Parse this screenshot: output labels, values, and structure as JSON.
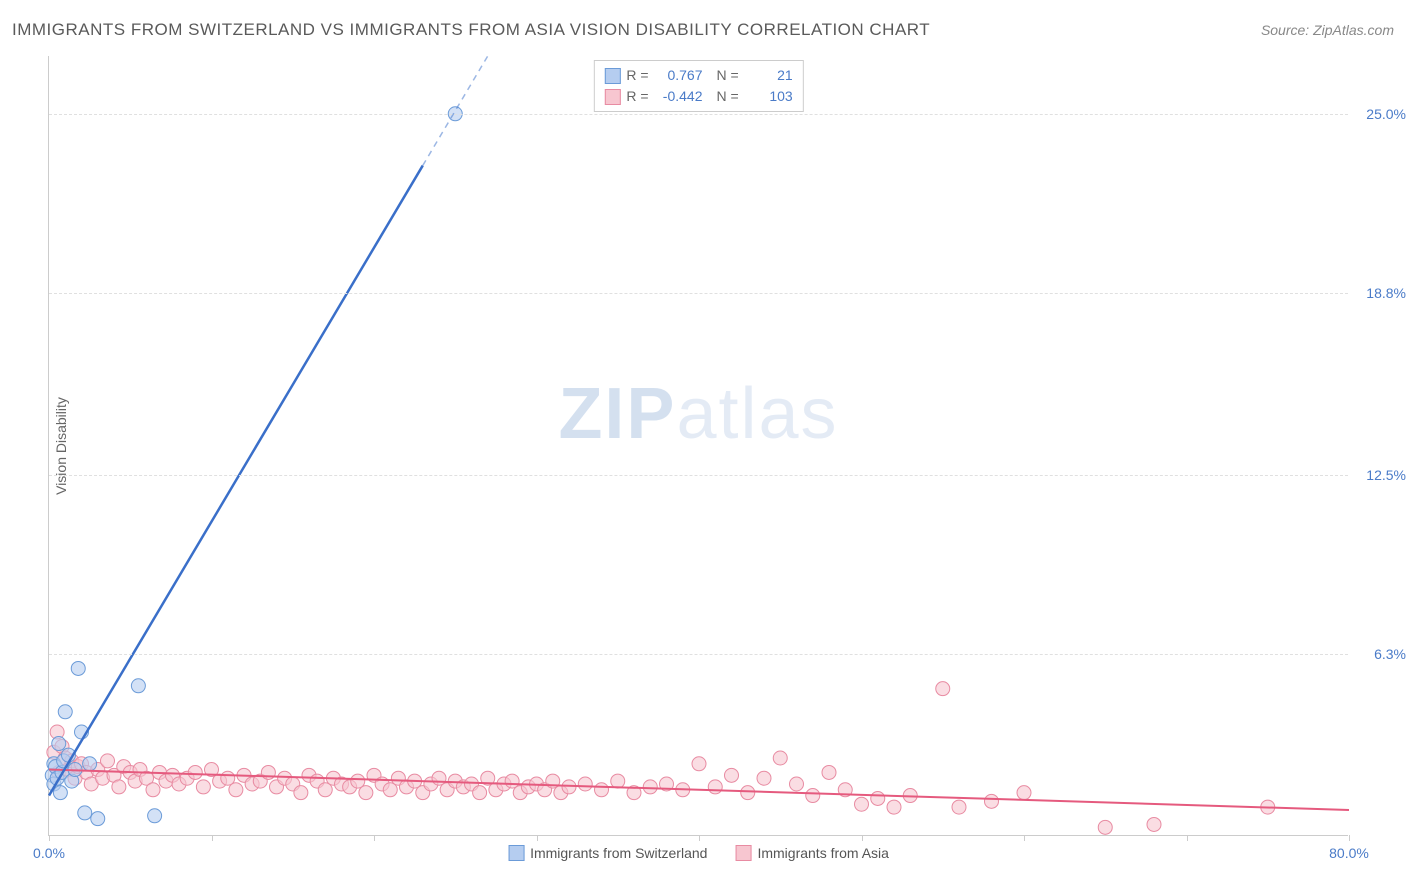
{
  "header": {
    "title": "IMMIGRANTS FROM SWITZERLAND VS IMMIGRANTS FROM ASIA VISION DISABILITY CORRELATION CHART",
    "source": "Source: ZipAtlas.com"
  },
  "axes": {
    "y_label": "Vision Disability",
    "x_min": 0.0,
    "x_max": 80.0,
    "y_min": 0.0,
    "y_max": 27.0,
    "y_ticks": [
      {
        "value": 6.3,
        "label": "6.3%"
      },
      {
        "value": 12.5,
        "label": "12.5%"
      },
      {
        "value": 18.8,
        "label": "18.8%"
      },
      {
        "value": 25.0,
        "label": "25.0%"
      }
    ],
    "x_tick_label_min": "0.0%",
    "x_tick_label_max": "80.0%",
    "x_tick_positions": [
      0,
      10,
      20,
      30,
      40,
      50,
      60,
      70,
      80
    ]
  },
  "series": {
    "switzerland": {
      "label": "Immigrants from Switzerland",
      "color_fill": "#b5cdf0",
      "color_stroke": "#6b9bd8",
      "line_color": "#3a6fc9",
      "marker_radius": 7,
      "R": "0.767",
      "N": "21",
      "points": [
        [
          0.2,
          2.1
        ],
        [
          0.3,
          2.5
        ],
        [
          0.3,
          1.8
        ],
        [
          0.4,
          2.4
        ],
        [
          0.5,
          2.0
        ],
        [
          0.6,
          3.2
        ],
        [
          0.7,
          1.5
        ],
        [
          0.8,
          2.2
        ],
        [
          0.9,
          2.6
        ],
        [
          1.0,
          4.3
        ],
        [
          1.2,
          2.8
        ],
        [
          1.4,
          1.9
        ],
        [
          1.6,
          2.3
        ],
        [
          1.8,
          5.8
        ],
        [
          2.0,
          3.6
        ],
        [
          2.2,
          0.8
        ],
        [
          2.5,
          2.5
        ],
        [
          3.0,
          0.6
        ],
        [
          5.5,
          5.2
        ],
        [
          6.5,
          0.7
        ],
        [
          25.0,
          25.0
        ]
      ],
      "regression": {
        "x1": 0,
        "y1": 1.4,
        "x2": 27,
        "y2": 27.0,
        "dash_after_x": 23
      }
    },
    "asia": {
      "label": "Immigrants from Asia",
      "color_fill": "#f7c6d0",
      "color_stroke": "#e88ba2",
      "line_color": "#e55a7e",
      "marker_radius": 7,
      "R": "-0.442",
      "N": "103",
      "points": [
        [
          0.3,
          2.9
        ],
        [
          0.5,
          3.6
        ],
        [
          0.6,
          2.2
        ],
        [
          0.8,
          3.1
        ],
        [
          1.0,
          2.7
        ],
        [
          1.2,
          2.3
        ],
        [
          1.4,
          2.6
        ],
        [
          1.6,
          2.0
        ],
        [
          1.8,
          2.4
        ],
        [
          2.0,
          2.5
        ],
        [
          2.3,
          2.2
        ],
        [
          2.6,
          1.8
        ],
        [
          3.0,
          2.3
        ],
        [
          3.3,
          2.0
        ],
        [
          3.6,
          2.6
        ],
        [
          4.0,
          2.1
        ],
        [
          4.3,
          1.7
        ],
        [
          4.6,
          2.4
        ],
        [
          5.0,
          2.2
        ],
        [
          5.3,
          1.9
        ],
        [
          5.6,
          2.3
        ],
        [
          6.0,
          2.0
        ],
        [
          6.4,
          1.6
        ],
        [
          6.8,
          2.2
        ],
        [
          7.2,
          1.9
        ],
        [
          7.6,
          2.1
        ],
        [
          8.0,
          1.8
        ],
        [
          8.5,
          2.0
        ],
        [
          9.0,
          2.2
        ],
        [
          9.5,
          1.7
        ],
        [
          10.0,
          2.3
        ],
        [
          10.5,
          1.9
        ],
        [
          11.0,
          2.0
        ],
        [
          11.5,
          1.6
        ],
        [
          12.0,
          2.1
        ],
        [
          12.5,
          1.8
        ],
        [
          13.0,
          1.9
        ],
        [
          13.5,
          2.2
        ],
        [
          14.0,
          1.7
        ],
        [
          14.5,
          2.0
        ],
        [
          15.0,
          1.8
        ],
        [
          15.5,
          1.5
        ],
        [
          16.0,
          2.1
        ],
        [
          16.5,
          1.9
        ],
        [
          17.0,
          1.6
        ],
        [
          17.5,
          2.0
        ],
        [
          18.0,
          1.8
        ],
        [
          18.5,
          1.7
        ],
        [
          19.0,
          1.9
        ],
        [
          19.5,
          1.5
        ],
        [
          20.0,
          2.1
        ],
        [
          20.5,
          1.8
        ],
        [
          21.0,
          1.6
        ],
        [
          21.5,
          2.0
        ],
        [
          22.0,
          1.7
        ],
        [
          22.5,
          1.9
        ],
        [
          23.0,
          1.5
        ],
        [
          23.5,
          1.8
        ],
        [
          24.0,
          2.0
        ],
        [
          24.5,
          1.6
        ],
        [
          25.0,
          1.9
        ],
        [
          25.5,
          1.7
        ],
        [
          26.0,
          1.8
        ],
        [
          26.5,
          1.5
        ],
        [
          27.0,
          2.0
        ],
        [
          27.5,
          1.6
        ],
        [
          28.0,
          1.8
        ],
        [
          28.5,
          1.9
        ],
        [
          29.0,
          1.5
        ],
        [
          29.5,
          1.7
        ],
        [
          30.0,
          1.8
        ],
        [
          30.5,
          1.6
        ],
        [
          31.0,
          1.9
        ],
        [
          31.5,
          1.5
        ],
        [
          32.0,
          1.7
        ],
        [
          33.0,
          1.8
        ],
        [
          34.0,
          1.6
        ],
        [
          35.0,
          1.9
        ],
        [
          36.0,
          1.5
        ],
        [
          37.0,
          1.7
        ],
        [
          38.0,
          1.8
        ],
        [
          39.0,
          1.6
        ],
        [
          40.0,
          2.5
        ],
        [
          41.0,
          1.7
        ],
        [
          42.0,
          2.1
        ],
        [
          43.0,
          1.5
        ],
        [
          44.0,
          2.0
        ],
        [
          45.0,
          2.7
        ],
        [
          46.0,
          1.8
        ],
        [
          47.0,
          1.4
        ],
        [
          48.0,
          2.2
        ],
        [
          49.0,
          1.6
        ],
        [
          50.0,
          1.1
        ],
        [
          51.0,
          1.3
        ],
        [
          52.0,
          1.0
        ],
        [
          53.0,
          1.4
        ],
        [
          55.0,
          5.1
        ],
        [
          56.0,
          1.0
        ],
        [
          58.0,
          1.2
        ],
        [
          60.0,
          1.5
        ],
        [
          65.0,
          0.3
        ],
        [
          68.0,
          0.4
        ],
        [
          75.0,
          1.0
        ]
      ],
      "regression": {
        "x1": 0,
        "y1": 2.3,
        "x2": 80,
        "y2": 0.9
      }
    }
  },
  "watermark": {
    "zip": "ZIP",
    "atlas": "atlas"
  },
  "styling": {
    "background_color": "#ffffff",
    "grid_color": "#e0e0e0",
    "axis_color": "#cccccc",
    "tick_label_color": "#4a7bc8",
    "title_color": "#5a5a5a",
    "title_fontsize": 17,
    "label_fontsize": 14,
    "marker_opacity": 0.6
  }
}
